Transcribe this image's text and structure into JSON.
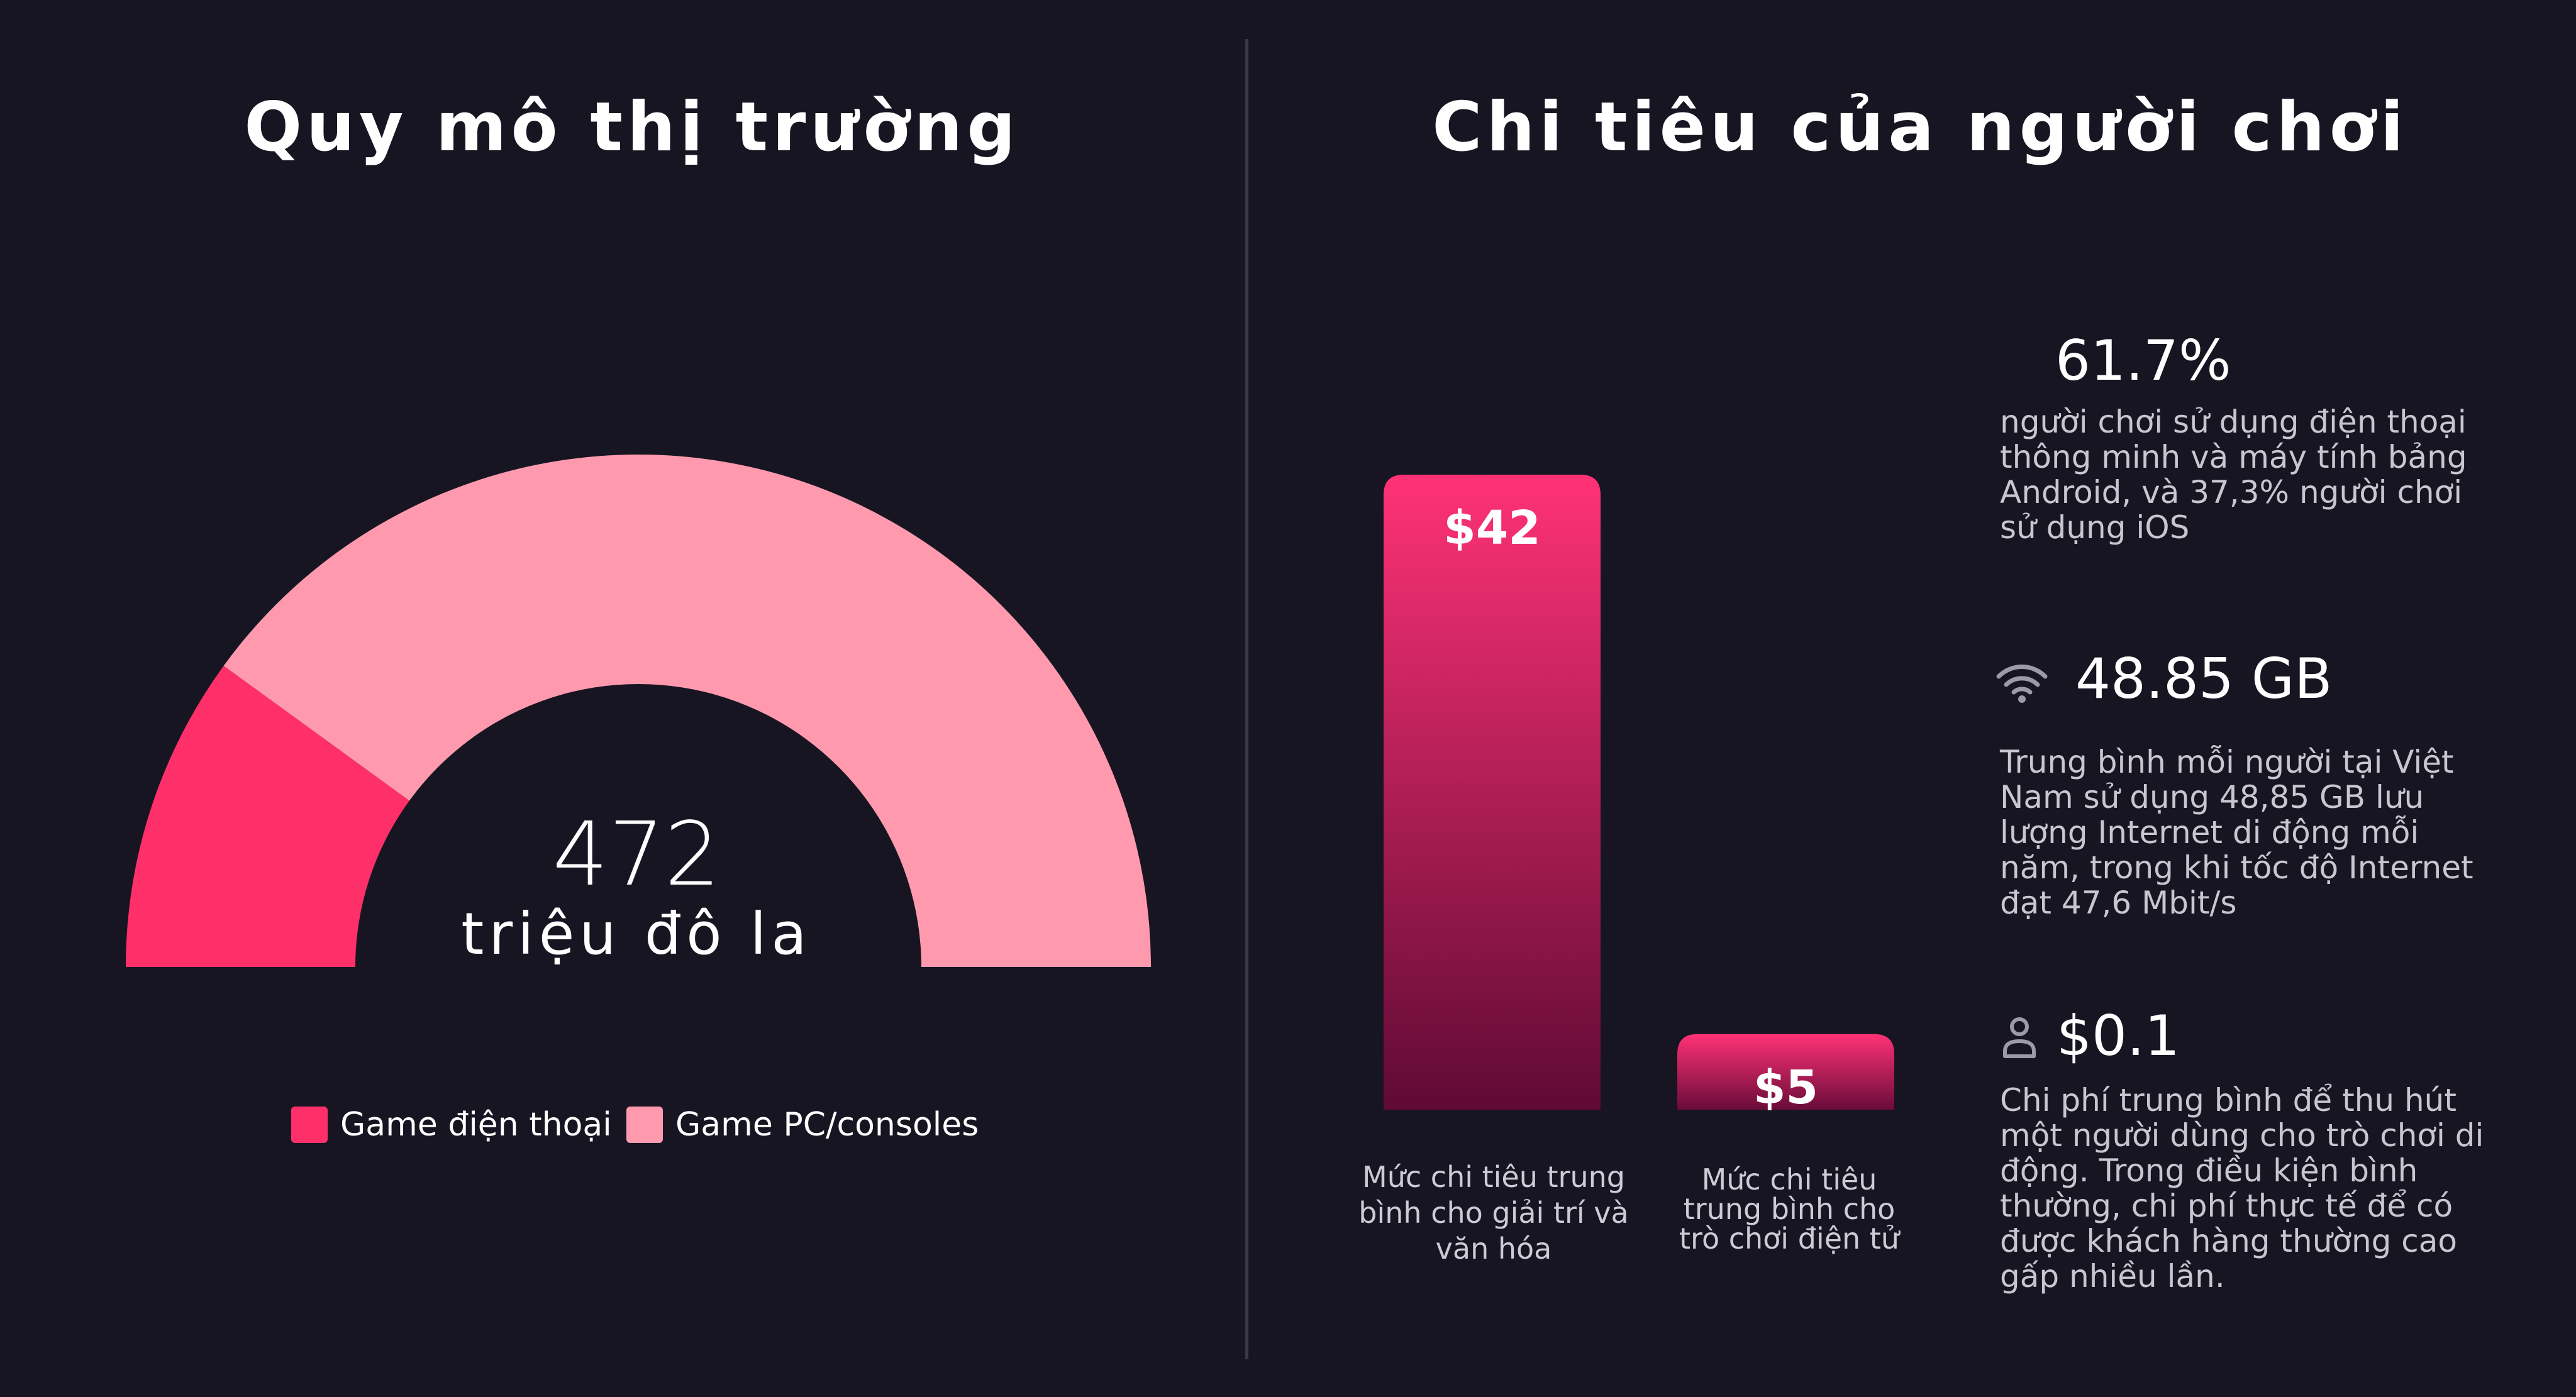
{
  "left_panel": {
    "title": "Quy mô thị trường",
    "center_value": "472",
    "center_unit": "triệu đô la"
  },
  "right_panel": {
    "title": "Chi tiêu của người chơi",
    "stats": [
      {
        "icon": "",
        "value": "61.7%",
        "description": "người chơi sử dụng điện thoại thông minh và máy tính bảng Android, và 37,3% người chơi sử dụng iOS"
      },
      {
        "icon": "wifi-icon",
        "value": "48.85 GB",
        "description": "Trung bình mỗi người tại Việt Nam sử dụng 48,85 GB lưu lượng Internet di động mỗi năm, trong khi tốc độ Internet đạt 47,6 Mbit/s"
      },
      {
        "icon": "user-icon",
        "value": "$0.1",
        "description": "Chi phí trung bình để thu hút một người dùng cho trò chơi di động. Trong điều kiện bình thường, chi phí thực tế để có được khách hàng thường cao gấp nhiều lần."
      }
    ]
  },
  "colors": {
    "background": "#181522",
    "mobile": "#ff2f6a",
    "pc": "#ff9aae",
    "bar_top": "#ff3276",
    "bar_bottom": "#5f0a34"
  },
  "chart_data": [
    {
      "type": "pie",
      "variant": "half-donut",
      "title": "Quy mô thị trường",
      "labels": [
        "Game điện thoại",
        "Game PC/consoles"
      ],
      "values": [
        20,
        80
      ],
      "value_unit": "percent of market",
      "center_text": "472 triệu đô la",
      "legend_position": "bottom"
    },
    {
      "type": "bar",
      "title": "Chi tiêu của người chơi",
      "categories": [
        "Mức chi tiêu trung bình cho giải trí và văn hóa",
        "Mức chi tiêu trung bình cho trò chơi điện tử"
      ],
      "values": [
        42,
        5
      ],
      "value_labels": [
        "$42",
        "$5"
      ],
      "ylim": [
        0,
        42
      ],
      "grid": false
    }
  ]
}
